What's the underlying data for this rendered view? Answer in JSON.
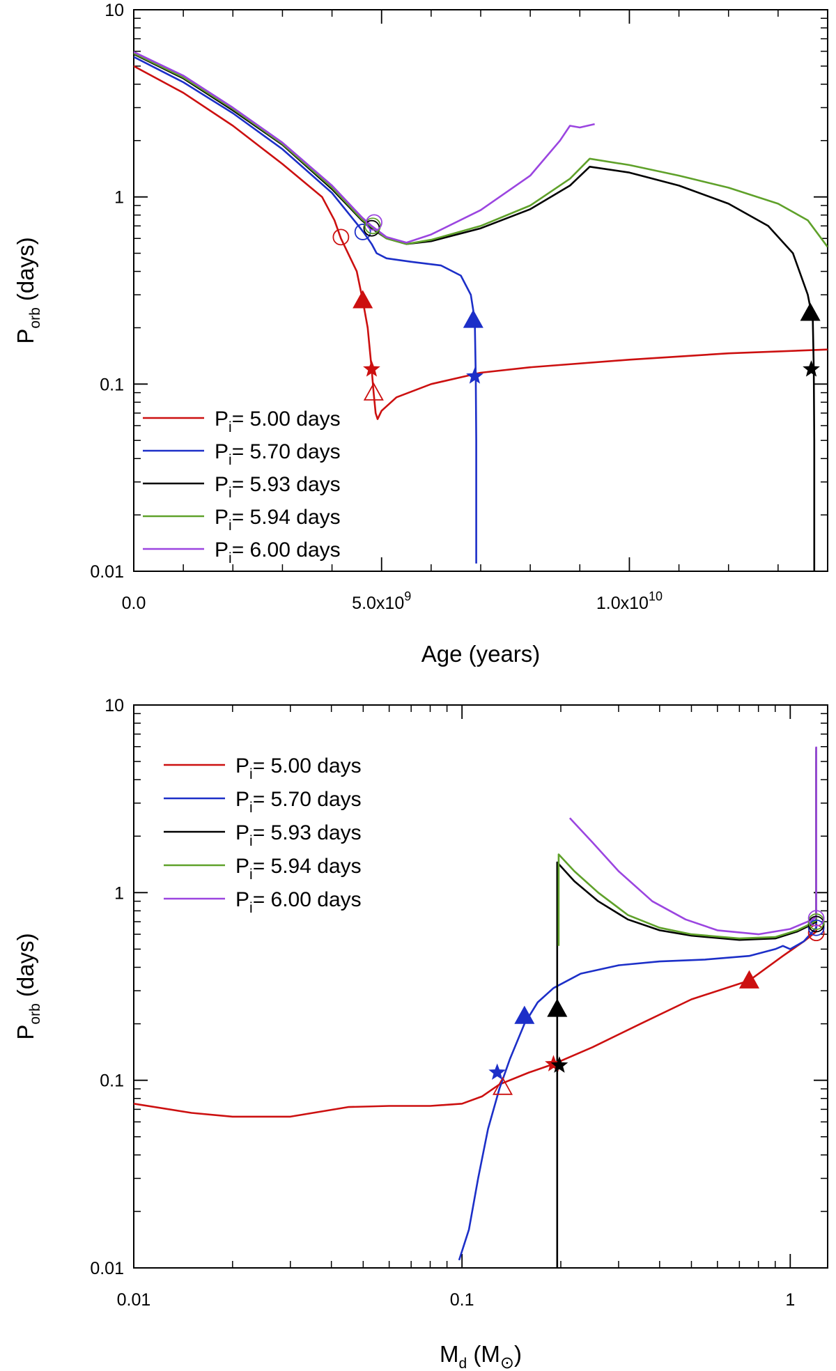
{
  "chart_data": [
    {
      "type": "line",
      "title": "",
      "xlabel": "Age (years)",
      "ylabel": {
        "main": "P",
        "sub": "orb",
        "rest": " (days)"
      },
      "xscale": "linear",
      "yscale": "log",
      "xlim": [
        0,
        14000000000
      ],
      "ylim": [
        0.01,
        10
      ],
      "x_ticks": [
        {
          "value": 0,
          "mantissa": "0.0",
          "exp": ""
        },
        {
          "value": 5000000000,
          "mantissa": "5.0x10",
          "exp": "9"
        },
        {
          "value": 10000000000,
          "mantissa": "1.0x10",
          "exp": "10"
        }
      ],
      "y_ticks": [
        {
          "value": 0.01,
          "label": "0.01"
        },
        {
          "value": 0.1,
          "label": "0.1"
        },
        {
          "value": 1,
          "label": "1"
        },
        {
          "value": 10,
          "label": "10"
        }
      ],
      "grid": false,
      "legend_position": "bottom-left",
      "series": [
        {
          "name": "5.00",
          "color": "#cc1010",
          "points": [
            [
              0,
              5.0
            ],
            [
              1000000000.0,
              3.6
            ],
            [
              2000000000.0,
              2.4
            ],
            [
              3000000000.0,
              1.5
            ],
            [
              3800000000.0,
              1.0
            ],
            [
              4050000000.0,
              0.75
            ],
            [
              4180000000.0,
              0.6
            ],
            [
              4500000000.0,
              0.4
            ],
            [
              4620000000.0,
              0.28
            ],
            [
              4720000000.0,
              0.2
            ],
            [
              4800000000.0,
              0.12
            ],
            [
              4840000000.0,
              0.09
            ],
            [
              4880000000.0,
              0.07
            ],
            [
              4920000000.0,
              0.065
            ],
            [
              5000000000.0,
              0.072
            ],
            [
              5300000000.0,
              0.085
            ],
            [
              6000000000.0,
              0.1
            ],
            [
              7000000000.0,
              0.115
            ],
            [
              8000000000.0,
              0.123
            ],
            [
              10000000000.0,
              0.135
            ],
            [
              12000000000.0,
              0.146
            ],
            [
              14000000000.0,
              0.153
            ]
          ]
        },
        {
          "name": "5.70",
          "color": "#1c2fc8",
          "points": [
            [
              0,
              5.6
            ],
            [
              1000000000.0,
              4.1
            ],
            [
              2000000000.0,
              2.8
            ],
            [
              3000000000.0,
              1.8
            ],
            [
              4000000000.0,
              1.05
            ],
            [
              4500000000.0,
              0.72
            ],
            [
              4650000000.0,
              0.64
            ],
            [
              4800000000.0,
              0.56
            ],
            [
              4900000000.0,
              0.5
            ],
            [
              5100000000.0,
              0.47
            ],
            [
              5600000000.0,
              0.45
            ],
            [
              6200000000.0,
              0.43
            ],
            [
              6600000000.0,
              0.38
            ],
            [
              6800000000.0,
              0.3
            ],
            [
              6880000000.0,
              0.22
            ],
            [
              6900000000.0,
              0.11
            ],
            [
              6910000000.0,
              0.05
            ],
            [
              6910000000.0,
              0.011
            ]
          ]
        },
        {
          "name": "5.93",
          "color": "#000000",
          "points": [
            [
              0,
              5.8
            ],
            [
              1000000000.0,
              4.3
            ],
            [
              2000000000.0,
              2.9
            ],
            [
              3000000000.0,
              1.9
            ],
            [
              4000000000.0,
              1.1
            ],
            [
              4600000000.0,
              0.75
            ],
            [
              4800000000.0,
              0.68
            ],
            [
              5100000000.0,
              0.6
            ],
            [
              5500000000.0,
              0.56
            ],
            [
              6000000000.0,
              0.58
            ],
            [
              7000000000.0,
              0.68
            ],
            [
              8000000000.0,
              0.86
            ],
            [
              8800000000.0,
              1.15
            ],
            [
              9200000000.0,
              1.45
            ],
            [
              10000000000.0,
              1.35
            ],
            [
              11000000000.0,
              1.15
            ],
            [
              12000000000.0,
              0.92
            ],
            [
              12800000000.0,
              0.7
            ],
            [
              13300000000.0,
              0.5
            ],
            [
              13600000000.0,
              0.3
            ],
            [
              13700000000.0,
              0.22
            ],
            [
              13720000000.0,
              0.12
            ],
            [
              13730000000.0,
              0.05
            ],
            [
              13730000000.0,
              0.01
            ]
          ]
        },
        {
          "name": "5.94",
          "color": "#5fa12a",
          "points": [
            [
              0,
              5.85
            ],
            [
              1000000000.0,
              4.35
            ],
            [
              2000000000.0,
              2.95
            ],
            [
              3000000000.0,
              1.92
            ],
            [
              4000000000.0,
              1.12
            ],
            [
              4600000000.0,
              0.76
            ],
            [
              4800000000.0,
              0.69
            ],
            [
              5100000000.0,
              0.6
            ],
            [
              5500000000.0,
              0.56
            ],
            [
              6000000000.0,
              0.59
            ],
            [
              7000000000.0,
              0.7
            ],
            [
              8000000000.0,
              0.9
            ],
            [
              8800000000.0,
              1.25
            ],
            [
              9200000000.0,
              1.6
            ],
            [
              10000000000.0,
              1.48
            ],
            [
              11000000000.0,
              1.3
            ],
            [
              12000000000.0,
              1.12
            ],
            [
              13000000000.0,
              0.92
            ],
            [
              13600000000.0,
              0.75
            ],
            [
              14000000000.0,
              0.54
            ]
          ]
        },
        {
          "name": "6.00",
          "color": "#9b45e0",
          "points": [
            [
              0,
              5.95
            ],
            [
              1000000000.0,
              4.45
            ],
            [
              2000000000.0,
              3.0
            ],
            [
              3000000000.0,
              1.95
            ],
            [
              4000000000.0,
              1.15
            ],
            [
              4600000000.0,
              0.78
            ],
            [
              4800000000.0,
              0.7
            ],
            [
              5100000000.0,
              0.61
            ],
            [
              5500000000.0,
              0.57
            ],
            [
              6000000000.0,
              0.63
            ],
            [
              7000000000.0,
              0.85
            ],
            [
              8000000000.0,
              1.3
            ],
            [
              8600000000.0,
              2.0
            ],
            [
              8800000000.0,
              2.4
            ],
            [
              9000000000.0,
              2.35
            ],
            [
              9300000000.0,
              2.45
            ]
          ]
        }
      ],
      "markers": [
        {
          "series": "5.00",
          "shape": "circle",
          "x": 4180000000.0,
          "y": 0.61
        },
        {
          "series": "5.70",
          "shape": "circle",
          "x": 4620000000.0,
          "y": 0.65
        },
        {
          "series": "5.93",
          "shape": "circle",
          "x": 4800000000.0,
          "y": 0.68
        },
        {
          "series": "5.94",
          "shape": "circle",
          "x": 4820000000.0,
          "y": 0.7
        },
        {
          "series": "6.00",
          "shape": "circle",
          "x": 4850000000.0,
          "y": 0.73
        },
        {
          "series": "5.00",
          "shape": "triangle",
          "x": 4620000000.0,
          "y": 0.28
        },
        {
          "series": "5.00",
          "shape": "star",
          "x": 4800000000.0,
          "y": 0.12
        },
        {
          "series": "5.00",
          "shape": "triangle-open",
          "x": 4840000000.0,
          "y": 0.09
        },
        {
          "series": "5.70",
          "shape": "triangle",
          "x": 6850000000.0,
          "y": 0.22
        },
        {
          "series": "5.70",
          "shape": "star",
          "x": 6880000000.0,
          "y": 0.11
        },
        {
          "series": "5.93",
          "shape": "triangle",
          "x": 13650000000.0,
          "y": 0.24
        },
        {
          "series": "5.93",
          "shape": "star",
          "x": 13670000000.0,
          "y": 0.12
        }
      ]
    },
    {
      "type": "line",
      "title": "",
      "xlabel": {
        "main": "M",
        "sub": "d",
        "rest": " (M",
        "symbol": "⊙",
        "close": ")"
      },
      "ylabel": {
        "main": "P",
        "sub": "orb",
        "rest": " (days)"
      },
      "xscale": "log",
      "yscale": "log",
      "xlim": [
        0.01,
        1.3
      ],
      "ylim": [
        0.01,
        10
      ],
      "x_ticks": [
        {
          "value": 0.01,
          "label": "0.01"
        },
        {
          "value": 0.1,
          "label": "0.1"
        },
        {
          "value": 1,
          "label": "1"
        }
      ],
      "y_ticks": [
        {
          "value": 0.01,
          "label": "0.01"
        },
        {
          "value": 0.1,
          "label": "0.1"
        },
        {
          "value": 1,
          "label": "1"
        },
        {
          "value": 10,
          "label": "10"
        }
      ],
      "grid": false,
      "legend_position": "top-left",
      "series": [
        {
          "name": "5.00",
          "color": "#cc1010",
          "points": [
            [
              0.01,
              0.075
            ],
            [
              0.015,
              0.067
            ],
            [
              0.02,
              0.064
            ],
            [
              0.03,
              0.064
            ],
            [
              0.045,
              0.072
            ],
            [
              0.06,
              0.073
            ],
            [
              0.08,
              0.073
            ],
            [
              0.1,
              0.075
            ],
            [
              0.115,
              0.082
            ],
            [
              0.13,
              0.095
            ],
            [
              0.16,
              0.11
            ],
            [
              0.19,
              0.122
            ],
            [
              0.25,
              0.15
            ],
            [
              0.35,
              0.2
            ],
            [
              0.5,
              0.27
            ],
            [
              0.75,
              0.34
            ],
            [
              0.95,
              0.46
            ],
            [
              1.1,
              0.55
            ],
            [
              1.2,
              0.62
            ],
            [
              1.2,
              5.0
            ]
          ]
        },
        {
          "name": "5.70",
          "color": "#1c2fc8",
          "points": [
            [
              0.098,
              0.011
            ],
            [
              0.105,
              0.016
            ],
            [
              0.112,
              0.03
            ],
            [
              0.12,
              0.055
            ],
            [
              0.13,
              0.09
            ],
            [
              0.14,
              0.13
            ],
            [
              0.155,
              0.2
            ],
            [
              0.17,
              0.26
            ],
            [
              0.19,
              0.31
            ],
            [
              0.23,
              0.37
            ],
            [
              0.3,
              0.41
            ],
            [
              0.4,
              0.43
            ],
            [
              0.55,
              0.44
            ],
            [
              0.75,
              0.46
            ],
            [
              0.9,
              0.5
            ],
            [
              0.95,
              0.52
            ],
            [
              1.0,
              0.5
            ],
            [
              1.1,
              0.55
            ],
            [
              1.17,
              0.62
            ],
            [
              1.2,
              0.65
            ],
            [
              1.2,
              5.7
            ]
          ]
        },
        {
          "name": "5.93",
          "color": "#000000",
          "points": [
            [
              0.195,
              0.01
            ],
            [
              0.195,
              1.45
            ],
            [
              0.22,
              1.15
            ],
            [
              0.26,
              0.9
            ],
            [
              0.32,
              0.72
            ],
            [
              0.4,
              0.63
            ],
            [
              0.5,
              0.59
            ],
            [
              0.7,
              0.56
            ],
            [
              0.9,
              0.57
            ],
            [
              1.05,
              0.62
            ],
            [
              1.15,
              0.67
            ],
            [
              1.2,
              0.7
            ],
            [
              1.2,
              5.93
            ]
          ]
        },
        {
          "name": "5.94",
          "color": "#5fa12a",
          "points": [
            [
              0.197,
              0.52
            ],
            [
              0.197,
              1.6
            ],
            [
              0.22,
              1.3
            ],
            [
              0.26,
              1.0
            ],
            [
              0.32,
              0.76
            ],
            [
              0.4,
              0.65
            ],
            [
              0.5,
              0.6
            ],
            [
              0.7,
              0.57
            ],
            [
              0.9,
              0.58
            ],
            [
              1.05,
              0.63
            ],
            [
              1.15,
              0.68
            ],
            [
              1.2,
              0.71
            ],
            [
              1.2,
              5.94
            ]
          ]
        },
        {
          "name": "6.00",
          "color": "#9b45e0",
          "points": [
            [
              0.213,
              2.5
            ],
            [
              0.22,
              2.35
            ],
            [
              0.25,
              1.85
            ],
            [
              0.3,
              1.3
            ],
            [
              0.38,
              0.9
            ],
            [
              0.48,
              0.72
            ],
            [
              0.6,
              0.63
            ],
            [
              0.8,
              0.6
            ],
            [
              1.0,
              0.64
            ],
            [
              1.15,
              0.71
            ],
            [
              1.2,
              0.74
            ],
            [
              1.2,
              6.0
            ]
          ]
        }
      ],
      "markers": [
        {
          "series": "5.00",
          "shape": "circle",
          "x": 1.2,
          "y": 0.61
        },
        {
          "series": "5.70",
          "shape": "circle",
          "x": 1.2,
          "y": 0.65
        },
        {
          "series": "5.93",
          "shape": "circle",
          "x": 1.2,
          "y": 0.68
        },
        {
          "series": "5.94",
          "shape": "circle",
          "x": 1.2,
          "y": 0.7
        },
        {
          "series": "6.00",
          "shape": "circle",
          "x": 1.2,
          "y": 0.73
        },
        {
          "series": "5.00",
          "shape": "triangle",
          "x": 0.75,
          "y": 0.34
        },
        {
          "series": "5.00",
          "shape": "star",
          "x": 0.19,
          "y": 0.122
        },
        {
          "series": "5.00",
          "shape": "triangle-open",
          "x": 0.133,
          "y": 0.092
        },
        {
          "series": "5.70",
          "shape": "triangle",
          "x": 0.155,
          "y": 0.22
        },
        {
          "series": "5.70",
          "shape": "star",
          "x": 0.128,
          "y": 0.11
        },
        {
          "series": "5.93",
          "shape": "triangle",
          "x": 0.195,
          "y": 0.24
        },
        {
          "series": "5.93",
          "shape": "star",
          "x": 0.198,
          "y": 0.12
        }
      ]
    }
  ],
  "legend_items": [
    {
      "series": "5.00",
      "color": "#cc1010",
      "prefix": "P",
      "sub": "i",
      "text": "= 5.00 days"
    },
    {
      "series": "5.70",
      "color": "#1c2fc8",
      "prefix": "P",
      "sub": "i",
      "text": "= 5.70 days"
    },
    {
      "series": "5.93",
      "color": "#000000",
      "prefix": "P",
      "sub": "i",
      "text": "= 5.93 days"
    },
    {
      "series": "5.94",
      "color": "#5fa12a",
      "prefix": "P",
      "sub": "i",
      "text": "= 5.94 days"
    },
    {
      "series": "6.00",
      "color": "#9b45e0",
      "prefix": "P",
      "sub": "i",
      "text": "= 6.00 days"
    }
  ]
}
